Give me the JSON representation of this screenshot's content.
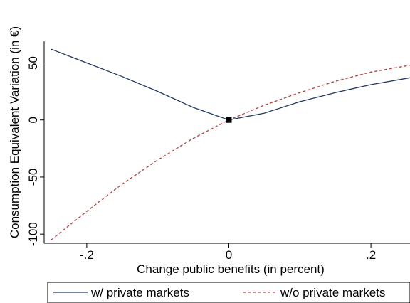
{
  "chart_data": {
    "type": "line",
    "title": "",
    "xlabel": "Change public benefits (in percent)",
    "ylabel": "Consumption Equivalent Variation (in €)",
    "xlim": [
      -0.26,
      0.255
    ],
    "ylim": [
      -108,
      69
    ],
    "xticks": [
      {
        "value": -0.2,
        "label": "-.2"
      },
      {
        "value": 0,
        "label": "0"
      },
      {
        "value": 0.2,
        "label": ".2"
      }
    ],
    "yticks": [
      {
        "value": -100,
        "label": "-100"
      },
      {
        "value": -50,
        "label": "-50"
      },
      {
        "value": 0,
        "label": "0"
      },
      {
        "value": 50,
        "label": "50"
      }
    ],
    "grid": false,
    "legend_position": "bottom",
    "series": [
      {
        "name": "w/ private markets",
        "color": "#1f3a5f",
        "dash": "solid",
        "points": [
          [
            -0.25,
            62
          ],
          [
            -0.2,
            50
          ],
          [
            -0.15,
            38
          ],
          [
            -0.1,
            25
          ],
          [
            -0.05,
            11
          ],
          [
            0,
            0
          ],
          [
            0.05,
            6
          ],
          [
            0.1,
            16
          ],
          [
            0.15,
            24
          ],
          [
            0.2,
            31
          ],
          [
            0.255,
            37
          ]
        ]
      },
      {
        "name": "w/o private markets",
        "color": "#b0413e",
        "dash": "dashed",
        "points": [
          [
            -0.25,
            -105
          ],
          [
            -0.2,
            -80
          ],
          [
            -0.15,
            -56
          ],
          [
            -0.1,
            -35
          ],
          [
            -0.05,
            -16
          ],
          [
            0,
            0
          ],
          [
            0.05,
            13
          ],
          [
            0.1,
            24
          ],
          [
            0.15,
            34
          ],
          [
            0.2,
            42
          ],
          [
            0.255,
            48
          ]
        ]
      }
    ],
    "marker": {
      "x": 0,
      "y": 0,
      "shape": "square",
      "color": "#000000"
    }
  }
}
